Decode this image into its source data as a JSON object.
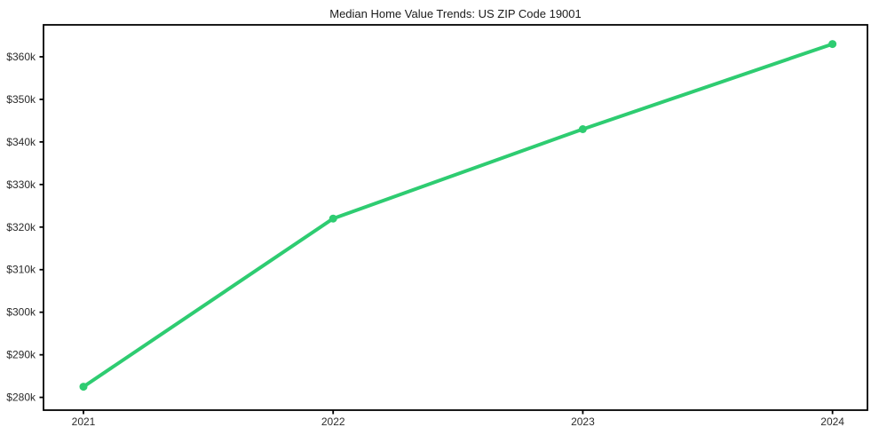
{
  "title": "Median Home Value Trends: US ZIP Code 19001",
  "colors": {
    "line": "#2ecc71",
    "marker": "#2ecc71",
    "axis": "#000000",
    "tick_label": "#2b2b2b",
    "title_text": "#1a1a1a",
    "background": "#ffffff"
  },
  "chart_data": {
    "type": "line",
    "title": "Median Home Value Trends: US ZIP Code 19001",
    "xlabel": "",
    "ylabel": "",
    "x": [
      2021,
      2022,
      2023,
      2024
    ],
    "x_tick_labels": [
      "2021",
      "2022",
      "2023",
      "2024"
    ],
    "series": [
      {
        "name": "Median Home Value",
        "values": [
          282500,
          322000,
          343000,
          363000
        ]
      }
    ],
    "y_ticks": [
      280000,
      290000,
      300000,
      310000,
      320000,
      330000,
      340000,
      350000,
      360000
    ],
    "y_tick_labels": [
      "$280k",
      "$290k",
      "$300k",
      "$310k",
      "$320k",
      "$330k",
      "$340k",
      "$350k",
      "$360k"
    ],
    "ylim": [
      277000,
      367500
    ],
    "xlim": [
      2020.84,
      2024.14
    ],
    "grid": false,
    "legend": false,
    "marker": "circle",
    "line_width": 4,
    "marker_radius": 4.5
  }
}
